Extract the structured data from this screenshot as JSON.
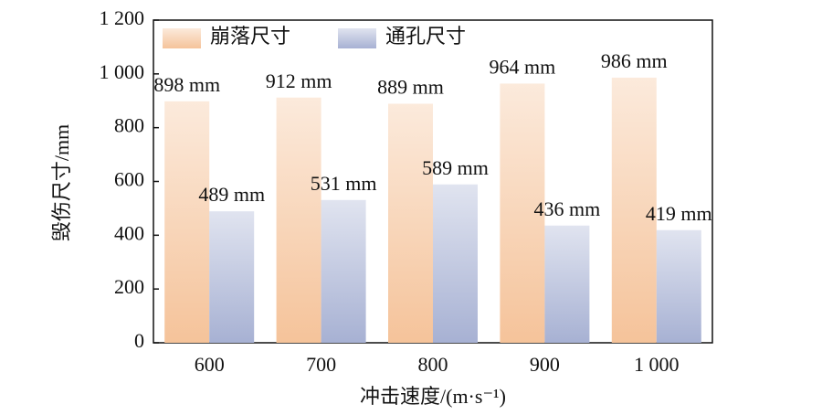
{
  "chart_data": {
    "type": "bar",
    "ylabel": "毁伤尺寸/mm",
    "xlabel": "冲击速度/(m·s⁻¹)",
    "categories": [
      "600",
      "700",
      "800",
      "900",
      "1 000"
    ],
    "series": [
      {
        "name": "崩落尺寸",
        "color": "#f5c39a",
        "values": [
          898,
          912,
          889,
          964,
          986
        ],
        "value_labels": [
          "898 mm",
          "912 mm",
          "889 mm",
          "964 mm",
          "986 mm"
        ]
      },
      {
        "name": "通孔尺寸",
        "color": "#a7b1d3",
        "values": [
          489,
          531,
          589,
          436,
          419
        ],
        "value_labels": [
          "489 mm",
          "531 mm",
          "589 mm",
          "436 mm",
          "419 mm"
        ]
      }
    ],
    "ylim": [
      0,
      1200
    ],
    "yticks": [
      0,
      200,
      400,
      600,
      800,
      {
        "value": 1000,
        "label": "1 000"
      },
      {
        "value": 1200,
        "label": "1 200"
      }
    ],
    "legend": "top-left"
  }
}
